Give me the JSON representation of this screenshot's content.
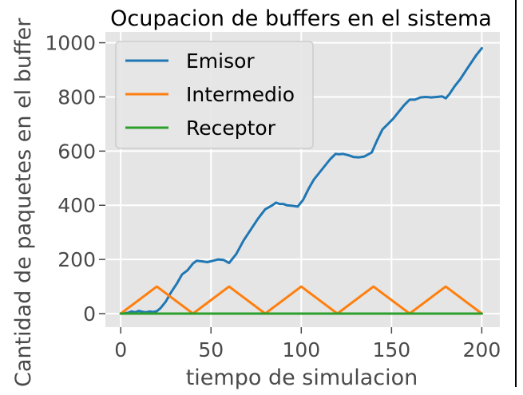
{
  "chart_data": {
    "type": "line",
    "title": "Ocupacion de buffers en el sistema",
    "xlabel": "tiempo de simulacion",
    "ylabel": "Cantidad de paquetes en el buffer",
    "xlim": [
      -8.5,
      210
    ],
    "ylim": [
      -50,
      1040
    ],
    "xticks": [
      0,
      50,
      100,
      150,
      200
    ],
    "yticks": [
      0,
      200,
      400,
      600,
      800,
      1000
    ],
    "grid": true,
    "legend_position": "upper-left",
    "series": [
      {
        "name": "Emisor",
        "color": "#1f77b4",
        "x": [
          0,
          4,
          6,
          8,
          10,
          12,
          14,
          16,
          18,
          20,
          22,
          25,
          28,
          31,
          34,
          37,
          40,
          42,
          45,
          48,
          51,
          54,
          57,
          60,
          64,
          68,
          72,
          76,
          80,
          84,
          86,
          88,
          90,
          92,
          95,
          98,
          101,
          104,
          107,
          110,
          113,
          116,
          119,
          121,
          123,
          126,
          129,
          132,
          135,
          139,
          142,
          145,
          148,
          151,
          154,
          157,
          160,
          163,
          166,
          169,
          172,
          175,
          178,
          180,
          182,
          185,
          188,
          191,
          194,
          197,
          200
        ],
        "y": [
          0,
          3,
          8,
          5,
          10,
          7,
          5,
          8,
          6,
          9,
          20,
          45,
          80,
          110,
          145,
          160,
          185,
          195,
          193,
          190,
          195,
          200,
          198,
          187,
          220,
          270,
          310,
          350,
          385,
          400,
          410,
          405,
          405,
          400,
          398,
          395,
          420,
          460,
          495,
          520,
          545,
          570,
          590,
          588,
          590,
          585,
          578,
          577,
          580,
          595,
          640,
          680,
          700,
          720,
          745,
          770,
          790,
          790,
          798,
          800,
          798,
          800,
          802,
          795,
          810,
          840,
          865,
          895,
          925,
          955,
          980
        ]
      },
      {
        "name": "Intermedio",
        "color": "#ff7f0e",
        "x": [
          0,
          20,
          40,
          60,
          80,
          100,
          120,
          140,
          160,
          180,
          200
        ],
        "y": [
          0,
          100,
          0,
          100,
          0,
          100,
          0,
          100,
          0,
          100,
          0
        ]
      },
      {
        "name": "Receptor",
        "color": "#2ca02c",
        "x": [
          0,
          200
        ],
        "y": [
          0,
          0
        ]
      }
    ]
  }
}
